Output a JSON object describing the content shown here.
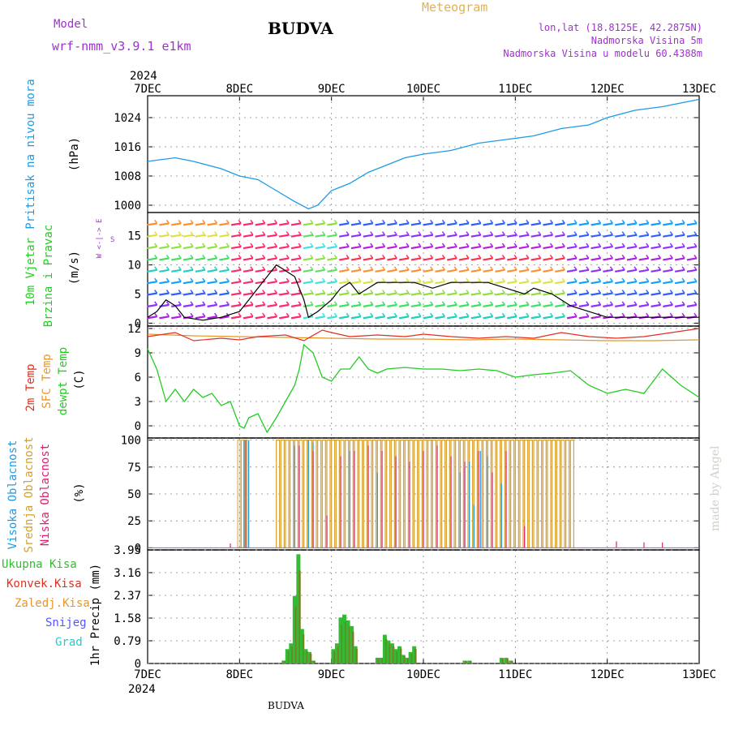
{
  "header": {
    "model_label": "Model",
    "model_name": "wrf-nmm_v3.9.1 e1km",
    "station": "BUDVA",
    "product": "Meteogram",
    "lonlat": "lon,lat (18.8125E, 42.2875N)",
    "elevation": "Nadmorska Visina 5m",
    "model_elevation": "Nadmorska Visina u modelu 60.4388m",
    "credit": "made by Angel",
    "footer_station": "BUDVA"
  },
  "colors": {
    "pressure": "#1e9be6",
    "wind_black": "#000000",
    "temp2m": "#e0301e",
    "sfc_temp": "#e6962a",
    "dewpt": "#22cc22",
    "high_cloud": "#1e9be6",
    "mid_cloud": "#d6a030",
    "low_cloud": "#e0206e",
    "total_precip": "#33bb33",
    "convective": "#e0301e",
    "freezing": "#e6962a",
    "snow": "#5555ff",
    "hail": "#22cccc",
    "label_purple": "#a030d0"
  },
  "time_axis": {
    "year": "2024",
    "days": [
      "7DEC",
      "8DEC",
      "9DEC",
      "10DEC",
      "11DEC",
      "12DEC",
      "13DEC"
    ]
  },
  "panels": {
    "pressure": {
      "ylabel_1": "Pritisak na nivou mora",
      "ylabel_2": "(hPa)",
      "ticks": [
        "1000",
        "1008",
        "1016",
        "1024"
      ]
    },
    "wind": {
      "ylabel_1": "10m Vjetar",
      "ylabel_2": "Brzina i Pravac",
      "ylabel_3": "(m/s)",
      "compass": "W <-|-> E",
      "compass_n": "N",
      "compass_s": "S",
      "ticks": [
        "0",
        "5",
        "10",
        "15"
      ]
    },
    "temp": {
      "ylabel_1": "2m Temp",
      "ylabel_2": "SFC Temp",
      "ylabel_3": "dewpt Temp",
      "ylabel_4": "(C)",
      "ticks": [
        "0",
        "3",
        "6",
        "9",
        "12"
      ]
    },
    "cloud": {
      "ylabel_1": "Visoka Oblacnost",
      "ylabel_2": "Srednja Oblacnost",
      "ylabel_3": "Niska Oblacnost",
      "ylabel_4": "(%)",
      "ticks": [
        "0",
        "25",
        "50",
        "75",
        "100"
      ]
    },
    "precip": {
      "ylabel": "1hr Precip (mm)",
      "ticks": [
        "0",
        "0.79",
        "1.58",
        "2.37",
        "3.16",
        "3.95"
      ],
      "legend": [
        "Ukupna Kisa",
        "Konvek.Kisa",
        "Zaledj.Kisa",
        "Snijeg",
        "Grad"
      ]
    }
  },
  "chart_data": [
    {
      "type": "line",
      "title": "Pritisak na nivou mora",
      "xlabel": "",
      "ylabel": "hPa",
      "ylim": [
        1000,
        1030
      ],
      "series": [
        {
          "x": [
            0,
            0.3,
            0.5,
            0.8,
            1.0,
            1.2,
            1.4,
            1.6,
            1.75,
            1.85,
            2.0,
            2.2,
            2.4,
            2.6,
            2.8,
            3.0,
            3.3,
            3.6,
            3.9,
            4.2,
            4.5,
            4.8,
            5.0,
            5.3,
            5.6,
            5.8,
            6.0
          ],
          "values": [
            1012,
            1013,
            1012,
            1010,
            1008,
            1007,
            1004,
            1001,
            999,
            1000,
            1004,
            1006,
            1009,
            1011,
            1013,
            1014,
            1015,
            1017,
            1018,
            1019,
            1021,
            1022,
            1024,
            1026,
            1027,
            1028,
            1029
          ]
        }
      ]
    },
    {
      "type": "line",
      "title": "10m Vjetar Brzina i Pravac",
      "ylabel": "m/s",
      "ylim": [
        0,
        18.5
      ],
      "series": [
        {
          "x": [
            0,
            0.1,
            0.2,
            0.3,
            0.4,
            0.6,
            0.8,
            1.0,
            1.1,
            1.2,
            1.3,
            1.4,
            1.5,
            1.6,
            1.7,
            1.75,
            1.85,
            2.0,
            2.1,
            2.2,
            2.3,
            2.4,
            2.5,
            2.7,
            2.9,
            3.1,
            3.3,
            3.5,
            3.7,
            3.9,
            4.1,
            4.2,
            4.4,
            4.6,
            4.8,
            5.0,
            5.2,
            5.4,
            5.6,
            5.8,
            6.0
          ],
          "values": [
            1,
            2,
            4,
            3,
            1,
            0.5,
            1,
            2,
            4,
            6,
            8,
            10,
            9,
            8,
            4,
            1,
            2,
            4,
            6,
            7,
            5,
            6,
            7,
            7,
            7,
            6,
            7,
            7,
            7,
            6,
            5,
            6,
            5,
            3,
            2,
            1,
            1,
            1,
            1,
            1,
            1
          ]
        }
      ]
    },
    {
      "type": "line",
      "ylabel": "C",
      "ylim": [
        -1,
        12
      ],
      "series": [
        {
          "name": "2m Temp",
          "x": [
            0,
            0.3,
            0.5,
            0.8,
            1.0,
            1.2,
            1.5,
            1.7,
            1.9,
            2.0,
            2.2,
            2.5,
            2.8,
            3.0,
            3.3,
            3.6,
            3.9,
            4.2,
            4.5,
            4.8,
            5.1,
            5.4,
            5.7,
            6.0
          ],
          "values": [
            11,
            11.5,
            10.5,
            10.8,
            10.6,
            11,
            11.2,
            10.5,
            11.8,
            11.5,
            11,
            11.2,
            11,
            11.3,
            11,
            10.8,
            11,
            10.8,
            11.5,
            11,
            10.8,
            11,
            11.5,
            12
          ]
        },
        {
          "name": "SFC Temp",
          "x": [
            0,
            0.5,
            1.0,
            1.5,
            2.0,
            2.5,
            3.0,
            3.5,
            4.0,
            4.5,
            5.0,
            5.5,
            6.0
          ],
          "values": [
            11.3,
            11.1,
            11,
            10.9,
            10.8,
            10.7,
            10.7,
            10.6,
            10.7,
            10.6,
            10.5,
            10.5,
            10.6
          ]
        },
        {
          "name": "dewpt Temp",
          "x": [
            0,
            0.1,
            0.2,
            0.3,
            0.4,
            0.5,
            0.6,
            0.7,
            0.8,
            0.9,
            1.0,
            1.05,
            1.1,
            1.2,
            1.3,
            1.4,
            1.5,
            1.6,
            1.65,
            1.7,
            1.8,
            1.9,
            2.0,
            2.1,
            2.2,
            2.3,
            2.4,
            2.5,
            2.6,
            2.8,
            3.0,
            3.2,
            3.4,
            3.6,
            3.8,
            4.0,
            4.2,
            4.4,
            4.6,
            4.8,
            5.0,
            5.2,
            5.4,
            5.6,
            5.8,
            6.0
          ],
          "values": [
            9.5,
            7,
            3,
            4.5,
            3,
            4.5,
            3.5,
            4,
            2.5,
            3,
            0,
            -0.3,
            1,
            1.5,
            -0.8,
            1,
            3,
            5,
            7,
            10,
            9,
            6,
            5.5,
            7,
            7,
            8.5,
            7,
            6.5,
            7,
            7.2,
            7,
            7,
            6.8,
            7,
            6.8,
            6,
            6.3,
            6.5,
            6.8,
            5,
            4,
            4.5,
            4,
            7,
            5,
            3.5
          ]
        }
      ]
    },
    {
      "type": "bar",
      "title": "Oblacnost",
      "ylabel": "%",
      "ylim": [
        0,
        100
      ],
      "series": [
        {
          "name": "Visoka Oblacnost",
          "values": "0-100 pulses between 8DEC and 11DEC"
        },
        {
          "name": "Srednja Oblacnost",
          "values": "100 from ~8.4DEC to ~11.6DEC"
        },
        {
          "name": "Niska Oblacnost",
          "values": "0-95 pulses"
        }
      ]
    },
    {
      "type": "bar",
      "title": "1hr Precip",
      "ylabel": "mm",
      "ylim": [
        0,
        3.95
      ],
      "x": [
        1.48,
        1.52,
        1.56,
        1.6,
        1.64,
        1.68,
        1.72,
        1.76,
        1.8,
        2.02,
        2.06,
        2.1,
        2.14,
        2.18,
        2.22,
        2.26,
        2.5,
        2.54,
        2.58,
        2.62,
        2.66,
        2.7,
        2.74,
        2.78,
        2.82,
        2.86,
        2.9,
        3.45,
        3.5,
        3.85,
        3.9,
        3.95
      ],
      "values": [
        0.1,
        0.5,
        0.7,
        2.35,
        3.8,
        1.2,
        0.5,
        0.4,
        0.1,
        0.5,
        0.7,
        1.6,
        1.7,
        1.5,
        1.3,
        0.6,
        0.2,
        0.2,
        1.0,
        0.8,
        0.7,
        0.5,
        0.6,
        0.3,
        0.2,
        0.4,
        0.6,
        0.1,
        0.1,
        0.2,
        0.2,
        0.1
      ]
    }
  ]
}
